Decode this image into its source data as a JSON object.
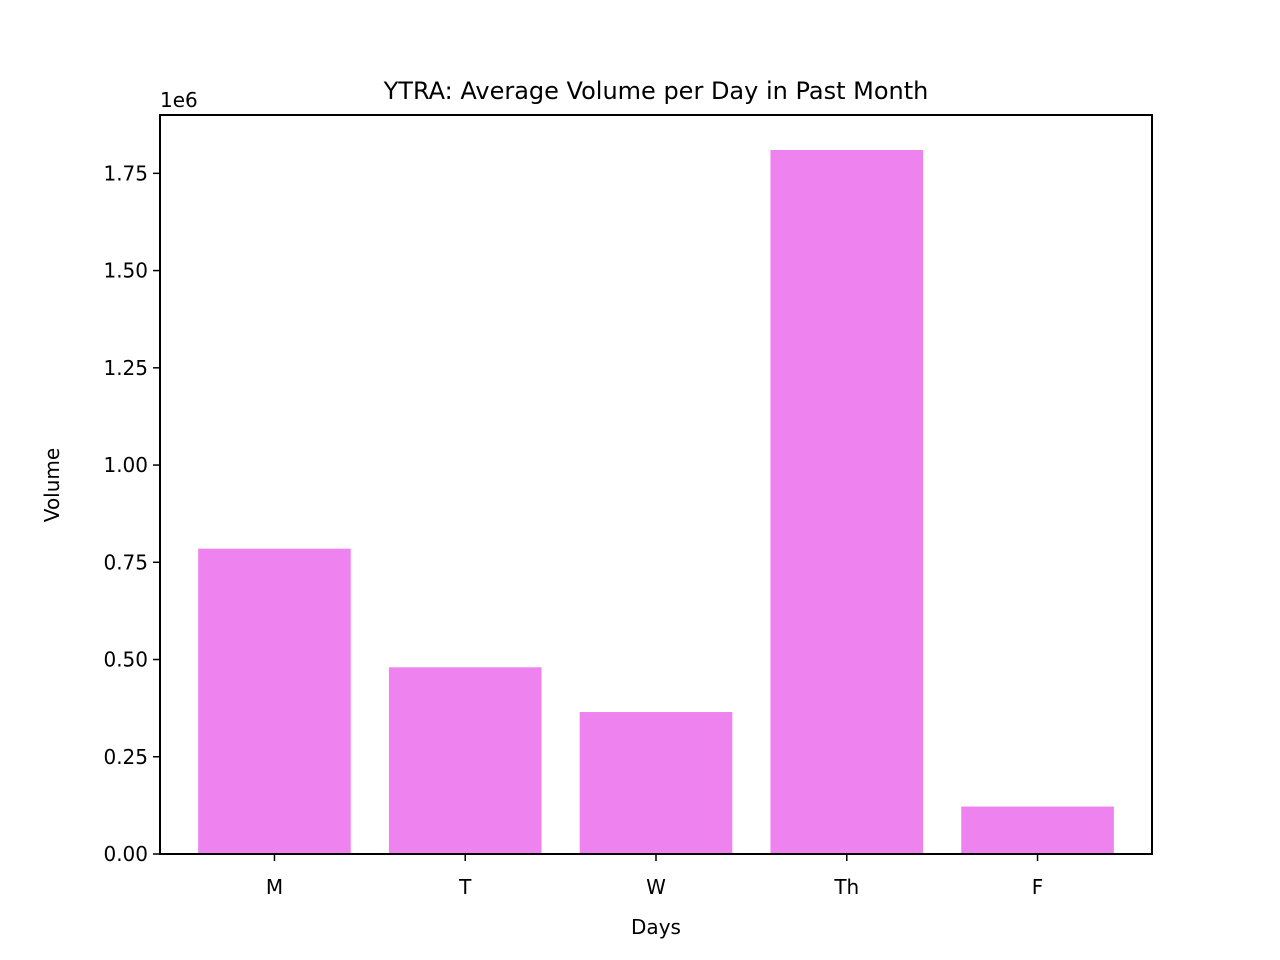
{
  "chart_data": {
    "type": "bar",
    "title": "YTRA: Average Volume per Day in Past Month",
    "xlabel": "Days",
    "ylabel": "Volume",
    "offset_label": "1e6",
    "categories": [
      "M",
      "T",
      "W",
      "Th",
      "F"
    ],
    "values": [
      785000,
      480000,
      365000,
      1810000,
      122000
    ],
    "ylim": [
      0,
      1.9
    ],
    "yticks": [
      "0.00",
      "0.25",
      "0.50",
      "0.75",
      "1.00",
      "1.25",
      "1.50",
      "1.75"
    ],
    "ytick_values": [
      0,
      0.25,
      0.5,
      0.75,
      1.0,
      1.25,
      1.5,
      1.75
    ],
    "y_scale": 1000000,
    "grid": false,
    "legend": "none",
    "bar_color": "#ee82ee"
  }
}
